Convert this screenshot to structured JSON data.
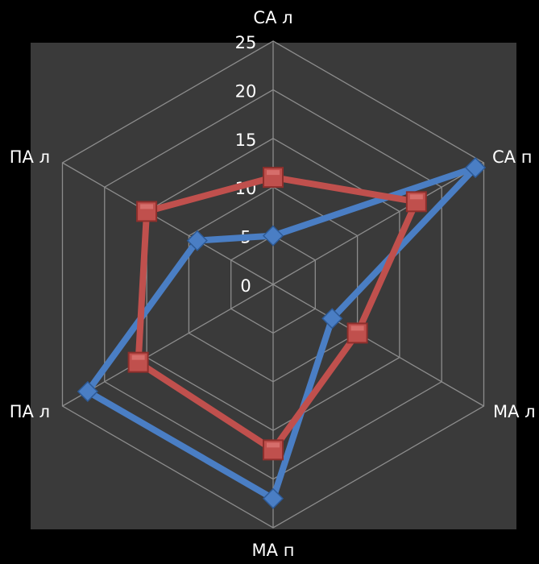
{
  "colors": {
    "page_background": "#000000",
    "plot_background": "#3a3a3a",
    "grid": "#8c8c8c",
    "text": "#ffffff",
    "series_1": "#4a7ec4",
    "series_2": "#c0504d"
  },
  "chart_data": {
    "type": "radar",
    "categories": [
      "СА л",
      "СА п",
      "МА л",
      "МА п",
      "ПА л",
      "ПА л"
    ],
    "axis": {
      "min": 0,
      "max": 25,
      "step": 5,
      "ticks": [
        "0",
        "5",
        "10",
        "15",
        "20",
        "25"
      ]
    },
    "grid": true,
    "legend": "none",
    "series": [
      {
        "marker": "diamond-icon",
        "color": "#4a7ec4",
        "values": [
          5,
          24,
          7,
          22,
          22,
          9
        ]
      },
      {
        "marker": "square-icon",
        "color": "#c0504d",
        "values": [
          11,
          17,
          10,
          17,
          16,
          15
        ]
      }
    ]
  }
}
